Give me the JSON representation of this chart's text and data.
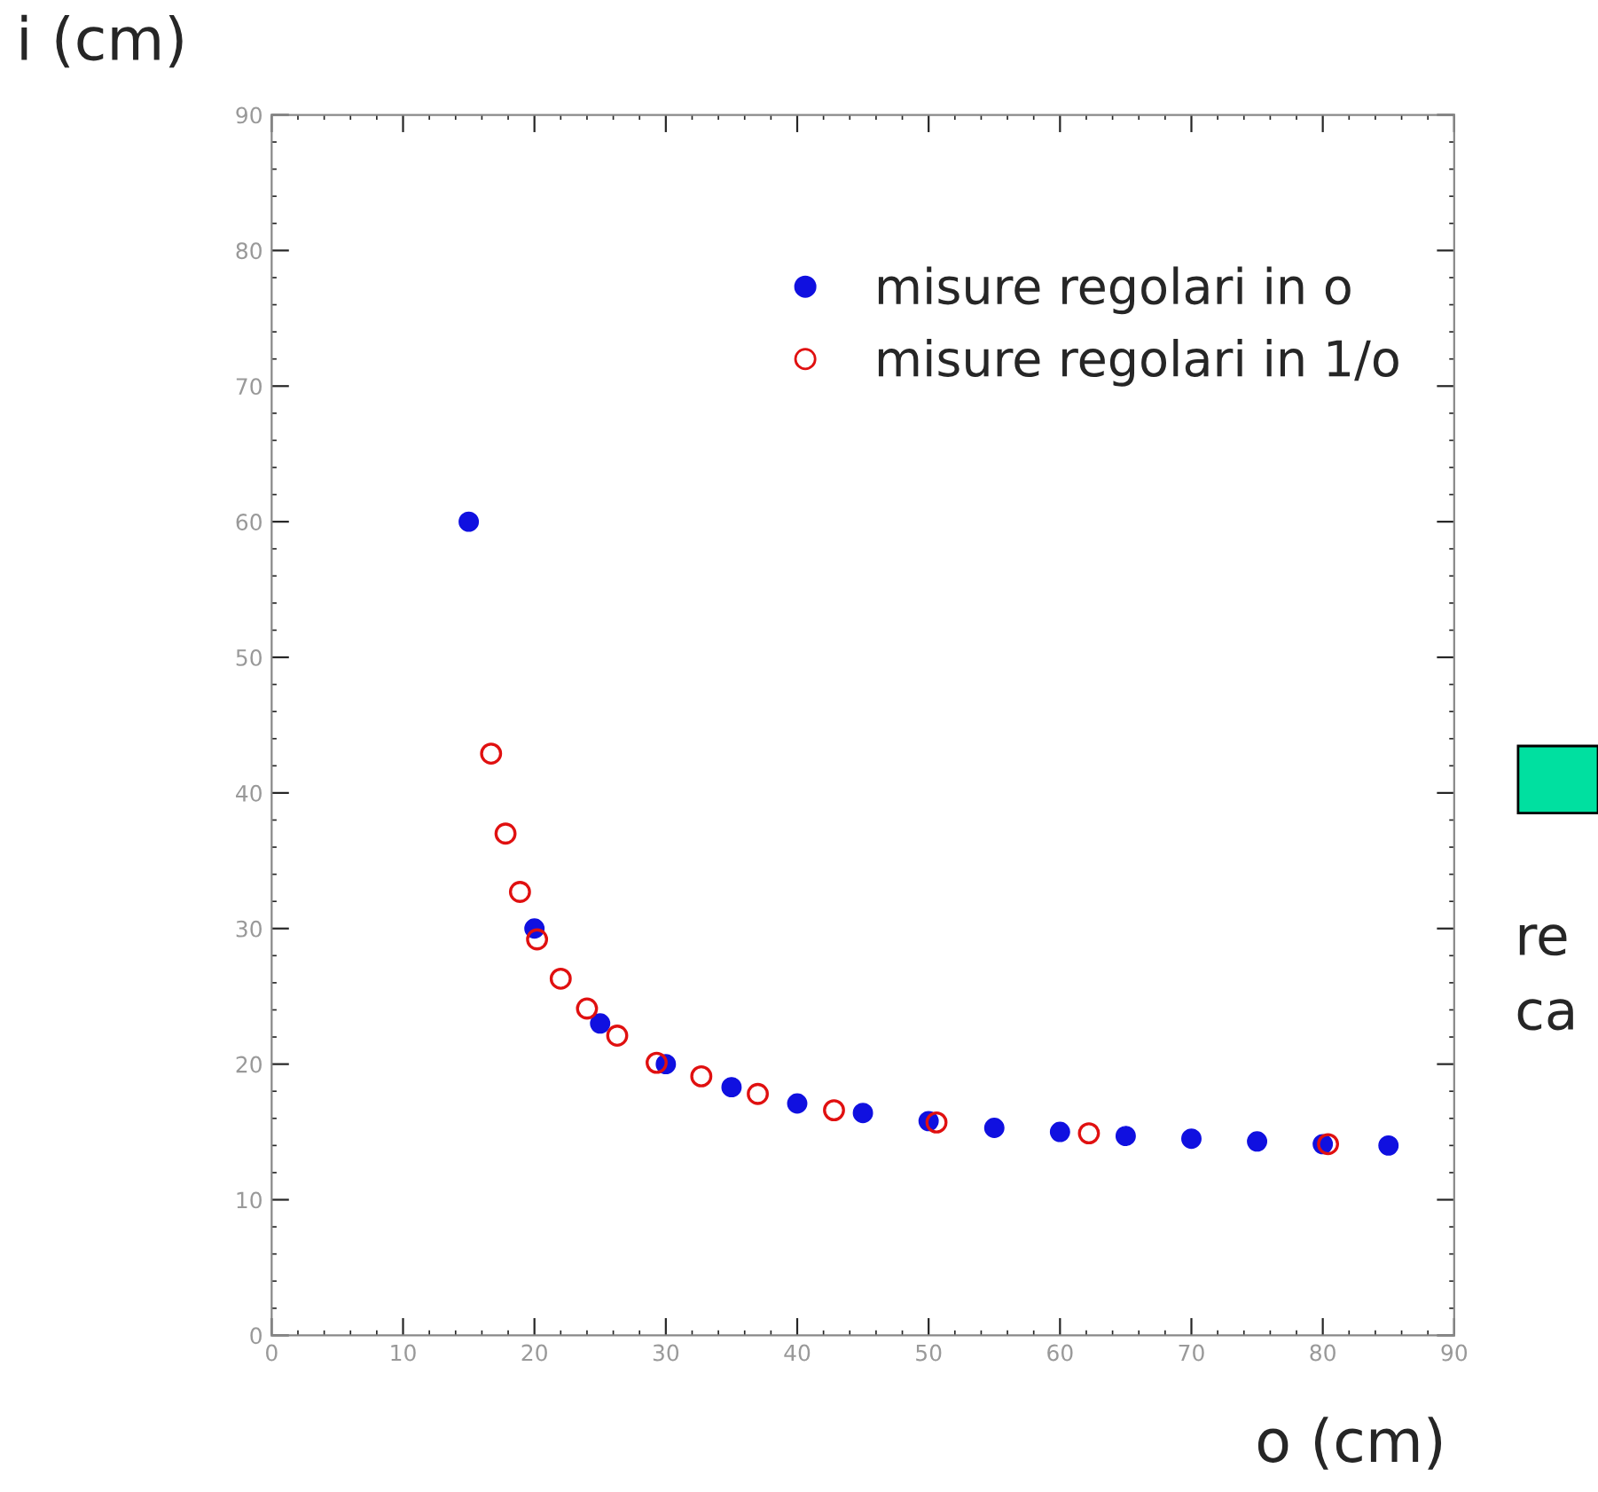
{
  "chart_data": {
    "type": "scatter",
    "xlabel": "o (cm)",
    "ylabel": "i (cm)",
    "xlim": [
      0,
      90
    ],
    "ylim": [
      0,
      90
    ],
    "xticks": [
      0,
      10,
      20,
      30,
      40,
      50,
      60,
      70,
      80,
      90
    ],
    "yticks": [
      0,
      10,
      20,
      30,
      40,
      50,
      60,
      70,
      80,
      90
    ],
    "grid": false,
    "legend": "top right",
    "annotations": [
      "re",
      "ca"
    ],
    "series": [
      {
        "name": "misure regolari in o",
        "color": "#1010e0",
        "marker": "circle",
        "x": [
          15,
          20,
          25,
          30,
          35,
          40,
          45,
          50,
          55,
          60,
          65,
          70,
          75,
          80,
          85
        ],
        "values": [
          60,
          30,
          23,
          20,
          18.3,
          17.1,
          16.4,
          15.8,
          15.3,
          15,
          14.7,
          14.5,
          14.3,
          14.1,
          14
        ]
      },
      {
        "name": "misure regolari in 1/o",
        "color": "#e01010",
        "marker": "circle",
        "x": [
          16.7,
          17.8,
          18.9,
          20.2,
          22.0,
          24.0,
          26.3,
          29.3,
          32.7,
          37.0,
          42.8,
          50.6,
          62.2,
          80.4
        ],
        "values": [
          42.9,
          37.0,
          32.7,
          29.2,
          26.3,
          24.1,
          22.1,
          20.1,
          19.1,
          17.8,
          16.6,
          15.7,
          14.9,
          14.1
        ]
      }
    ]
  }
}
